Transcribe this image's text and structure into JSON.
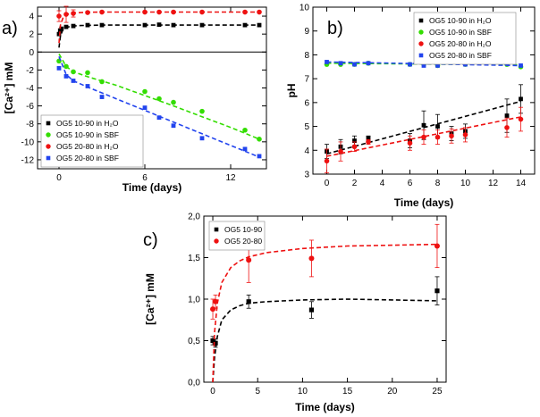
{
  "chart_data": [
    {
      "panel": "a)",
      "type": "scatter",
      "xlabel": "Time (days)",
      "ylabel": "[Ca²⁺] mM",
      "xlim": [
        -1.5,
        14.5
      ],
      "ylim": [
        -13,
        5
      ],
      "xticks": [
        0,
        6,
        12
      ],
      "yticks": [
        -12,
        -10,
        -8,
        -6,
        -4,
        -2,
        0,
        2,
        4
      ],
      "zero_line": true,
      "legend_position": "bottom-left",
      "series": [
        {
          "name": "OG5 10-90 in H₂O",
          "color": "#000000",
          "marker": "square",
          "x": [
            0,
            0.08,
            0.17,
            0.5,
            1,
            2,
            3,
            6,
            7,
            8,
            10,
            13,
            14
          ],
          "y": [
            2.0,
            2.4,
            2.6,
            2.8,
            2.9,
            3.0,
            3.0,
            3.0,
            3.05,
            3.0,
            3.0,
            3.0,
            3.0
          ],
          "fit_x": [
            0,
            0.1,
            0.25,
            0.5,
            1,
            1.5,
            2,
            3,
            4,
            6,
            8,
            10,
            12,
            14
          ],
          "fit_y": [
            0.5,
            1.8,
            2.4,
            2.75,
            2.9,
            2.95,
            2.97,
            3.0,
            3.0,
            3.0,
            3.0,
            3.0,
            3.0,
            3.0
          ]
        },
        {
          "name": "OG5 10-90 in SBF",
          "color": "#33dd00",
          "marker": "circle",
          "x": [
            0,
            0.5,
            1,
            2,
            3,
            6,
            7,
            8,
            10,
            13,
            14
          ],
          "y": [
            -1.0,
            -1.6,
            -2.2,
            -2.3,
            -3.3,
            -4.4,
            -5.2,
            -5.6,
            -6.6,
            -8.7,
            -9.7
          ],
          "fit_x": [
            0,
            0.5,
            1,
            2,
            4,
            6,
            8,
            10,
            12,
            14
          ],
          "fit_y": [
            -0.2,
            -1.6,
            -2.2,
            -2.75,
            -3.7,
            -4.85,
            -6.0,
            -7.2,
            -8.4,
            -9.7
          ]
        },
        {
          "name": "OG5 20-80 in H₂O",
          "color": "#ee1111",
          "marker": "circle",
          "x": [
            0,
            0.5,
            1,
            2,
            3,
            6,
            7,
            8,
            10,
            13,
            14
          ],
          "y": [
            4.0,
            4.2,
            4.3,
            4.4,
            4.45,
            4.45,
            4.45,
            4.45,
            4.45,
            4.45,
            4.45
          ],
          "err": [
            0.6,
            0.9,
            0.4,
            0.1,
            0.1,
            0.1,
            0.1,
            0.1,
            0.1,
            0.1,
            0.1
          ],
          "fit_x": [
            0,
            0.1,
            0.3,
            0.6,
            1,
            2,
            3,
            6,
            10,
            14
          ],
          "fit_y": [
            1.0,
            3.0,
            3.9,
            4.2,
            4.35,
            4.43,
            4.45,
            4.45,
            4.45,
            4.45
          ]
        },
        {
          "name": "OG5 20-80 in SBF",
          "color": "#2244ee",
          "marker": "square",
          "x": [
            0,
            0.5,
            1,
            2,
            3,
            6,
            7,
            8,
            10,
            13,
            14
          ],
          "y": [
            -1.8,
            -2.7,
            -3.2,
            -3.8,
            -5.0,
            -6.2,
            -7.3,
            -8.2,
            -9.6,
            -10.8,
            -11.6
          ],
          "fit_x": [
            0,
            0.5,
            1,
            2,
            4,
            6,
            8,
            10,
            12,
            14
          ],
          "fit_y": [
            -0.5,
            -2.5,
            -3.2,
            -3.9,
            -5.2,
            -6.5,
            -7.8,
            -9.1,
            -10.4,
            -11.7
          ]
        }
      ]
    },
    {
      "panel": "b)",
      "type": "scatter",
      "xlabel": "Time (days)",
      "ylabel": "pH",
      "xlim": [
        -1,
        15
      ],
      "ylim": [
        3,
        10
      ],
      "xticks": [
        0,
        2,
        4,
        6,
        8,
        10,
        12,
        14
      ],
      "yticks": [
        3,
        4,
        5,
        6,
        7,
        8,
        9,
        10
      ],
      "legend_position": "top-right",
      "series": [
        {
          "name": "OG5 10-90 in H₂O",
          "color": "#000000",
          "marker": "square",
          "x": [
            0,
            1,
            2,
            3,
            6,
            7,
            8,
            9,
            10,
            13,
            14
          ],
          "y": [
            3.95,
            4.15,
            4.4,
            4.5,
            4.4,
            5.05,
            5.0,
            4.7,
            4.8,
            5.45,
            6.15
          ],
          "err": [
            0.3,
            0.3,
            0.2,
            0.1,
            0.3,
            0.6,
            0.5,
            0.3,
            0.3,
            0.7,
            0.6
          ],
          "fit_x": [
            0,
            14
          ],
          "fit_y": [
            3.85,
            6.05
          ]
        },
        {
          "name": "OG5 10-90 in SBF",
          "color": "#33dd00",
          "marker": "circle",
          "x": [
            0,
            1,
            2,
            3,
            6,
            7,
            8,
            10,
            13,
            14
          ],
          "y": [
            7.6,
            7.6,
            7.6,
            7.65,
            7.6,
            7.6,
            7.55,
            7.6,
            7.6,
            7.5
          ],
          "fit_x": [
            0,
            14
          ],
          "fit_y": [
            7.65,
            7.58
          ]
        },
        {
          "name": "OG5 20-80 in H₂O",
          "color": "#ee1111",
          "marker": "circle",
          "x": [
            0,
            1,
            2,
            3,
            6,
            7,
            8,
            9,
            10,
            13,
            14
          ],
          "y": [
            3.55,
            3.95,
            4.15,
            4.35,
            4.3,
            4.55,
            4.55,
            4.6,
            4.65,
            4.95,
            5.3
          ],
          "err": [
            0.5,
            0.4,
            0.2,
            0.1,
            0.3,
            0.3,
            0.3,
            0.3,
            0.3,
            0.4,
            0.5
          ],
          "fit_x": [
            0,
            14
          ],
          "fit_y": [
            3.75,
            5.4
          ]
        },
        {
          "name": "OG5 20-80 in SBF",
          "color": "#2244ee",
          "marker": "square",
          "x": [
            0,
            1,
            2,
            3,
            6,
            7,
            8,
            10,
            13,
            14
          ],
          "y": [
            7.7,
            7.65,
            7.6,
            7.65,
            7.6,
            7.55,
            7.55,
            7.6,
            7.65,
            7.55
          ],
          "fit_x": [
            0,
            14
          ],
          "fit_y": [
            7.7,
            7.55
          ]
        }
      ]
    },
    {
      "panel": "c)",
      "type": "scatter",
      "xlabel": "Time (days)",
      "ylabel": "[Ca²⁺] mM",
      "xlim": [
        -1,
        26
      ],
      "ylim": [
        0,
        2.0
      ],
      "xticks": [
        0,
        5,
        10,
        15,
        20,
        25
      ],
      "yticks": [
        0,
        0.5,
        1.0,
        1.5,
        2.0
      ],
      "ytick_labels": [
        "0,0",
        "0,5",
        "1,0",
        "1,5",
        "2,0"
      ],
      "legend_position": "top-left",
      "series": [
        {
          "name": "OG5 10-90",
          "color": "#000000",
          "marker": "square",
          "x": [
            0,
            0.3,
            4,
            11,
            25
          ],
          "y": [
            0.5,
            0.47,
            0.97,
            0.87,
            1.1
          ],
          "err": [
            0.05,
            0.05,
            0.08,
            0.1,
            0.17
          ],
          "fit_x": [
            0,
            0.2,
            0.5,
            1,
            2,
            3,
            4,
            6,
            10,
            15,
            20,
            25
          ],
          "fit_y": [
            0,
            0.3,
            0.55,
            0.75,
            0.87,
            0.92,
            0.95,
            0.97,
            0.99,
            1.0,
            0.99,
            0.98
          ]
        },
        {
          "name": "OG5 20-80",
          "color": "#ee1111",
          "marker": "circle",
          "x": [
            0,
            0.3,
            4,
            11,
            25
          ],
          "y": [
            0.88,
            0.97,
            1.47,
            1.49,
            1.64
          ],
          "err": [
            0.12,
            0.08,
            0.27,
            0.22,
            0.26
          ],
          "fit_x": [
            0,
            0.2,
            0.5,
            1,
            2,
            3,
            4,
            6,
            10,
            15,
            20,
            25
          ],
          "fit_y": [
            0,
            0.6,
            0.95,
            1.2,
            1.38,
            1.46,
            1.51,
            1.56,
            1.61,
            1.64,
            1.65,
            1.66
          ]
        }
      ]
    }
  ]
}
